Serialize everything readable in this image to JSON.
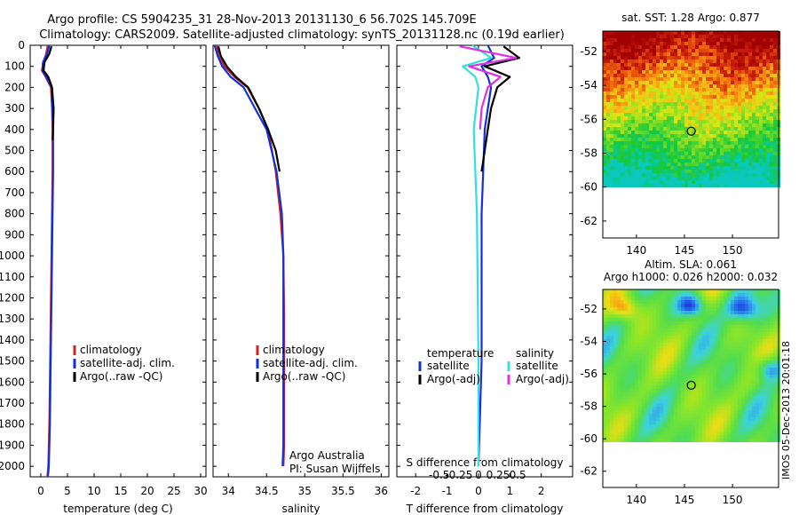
{
  "header": {
    "title_line1": "Argo profile: CS 5904235_31 28-Nov-2013 20131130_6 56.702S 145.709E",
    "title_line2": "Climatology: CARS2009. Satellite-adjusted climatology: synTS_20131128.nc (0.19d earlier)"
  },
  "side_stamp": "IMOS 05-Dec-2013 20:01:18",
  "colors": {
    "climatology": "#d42020",
    "satellite": "#1030e0",
    "argo": "#000000",
    "sat_salinity": "#30e0e0",
    "argo_salinity": "#e030e0"
  },
  "chart_data": [
    {
      "type": "line",
      "xlabel": "temperature (deg C)",
      "ylabel": "",
      "xlim": [
        -2,
        31
      ],
      "ylim": [
        2050,
        0
      ],
      "xticks": [
        0,
        5,
        10,
        15,
        20,
        25,
        30
      ],
      "xtick_labels": [
        "0",
        "5",
        "10",
        "15",
        "20",
        "25",
        "30"
      ],
      "yticks": [
        0,
        100,
        200,
        300,
        400,
        500,
        600,
        700,
        800,
        900,
        1000,
        1100,
        1200,
        1300,
        1400,
        1500,
        1600,
        1700,
        1800,
        1900,
        2000
      ],
      "ytick_labels": [
        "0",
        "100",
        "200",
        "300",
        "400",
        "500",
        "600",
        "700",
        "800",
        "900",
        "1000",
        "1100",
        "1200",
        "1300",
        "1400",
        "1500",
        "1600",
        "1700",
        "1800",
        "1900",
        "2000"
      ],
      "legend": {
        "position": "lower-middle",
        "entries": [
          "climatology",
          "satellite-adj. clim.",
          "Argo(..raw -QC)"
        ]
      },
      "series": [
        {
          "name": "climatology",
          "color": "#d42020",
          "x": [
            1.3,
            1.0,
            0.5,
            0.2,
            0.9,
            1.9,
            2.1,
            2.2,
            2.2,
            2.1,
            2.0,
            1.9,
            1.8,
            1.7,
            1.6,
            1.5,
            1.4,
            1.3,
            1.2
          ],
          "y": [
            0,
            40,
            80,
            120,
            150,
            200,
            300,
            400,
            600,
            800,
            1000,
            1200,
            1400,
            1600,
            1800,
            1900,
            2000,
            2030,
            2050
          ]
        },
        {
          "name": "satellite-adj. clim.",
          "color": "#1030e0",
          "x": [
            1.6,
            1.2,
            0.4,
            0.3,
            1.0,
            2.0,
            2.2,
            2.3,
            2.3,
            2.2,
            2.1,
            2.0,
            1.9,
            1.8,
            1.7,
            1.6,
            1.5,
            1.4,
            1.3
          ],
          "y": [
            0,
            40,
            80,
            120,
            150,
            200,
            300,
            400,
            600,
            800,
            1000,
            1200,
            1400,
            1600,
            1800,
            1900,
            2000,
            2030,
            2050
          ]
        },
        {
          "name": "Argo(..raw -QC)",
          "color": "#000000",
          "x": [
            2.0,
            1.6,
            0.7,
            0.5,
            1.4,
            2.1,
            2.4,
            2.3,
            2.2
          ],
          "y": [
            5,
            40,
            80,
            120,
            150,
            200,
            300,
            400,
            450
          ]
        }
      ]
    },
    {
      "type": "line",
      "xlabel": "salinity",
      "ylabel": "",
      "xlim": [
        33.8,
        36.1
      ],
      "ylim": [
        2050,
        0
      ],
      "xticks": [
        34,
        34.5,
        35,
        35.5,
        36
      ],
      "xtick_labels": [
        "34",
        "34.5",
        "35",
        "35.5",
        "36"
      ],
      "legend": {
        "position": "lower-middle",
        "entries": [
          "climatology",
          "satellite-adj. clim.",
          "Argo(..raw -QC)"
        ]
      },
      "annotations": [
        "Argo Australia",
        "PI: Susan Wijffels"
      ],
      "series": [
        {
          "name": "climatology",
          "color": "#d42020",
          "x": [
            33.85,
            33.87,
            33.95,
            34.08,
            34.25,
            34.4,
            34.52,
            34.62,
            34.68,
            34.72,
            34.73,
            34.73,
            34.73,
            34.72
          ],
          "y": [
            0,
            50,
            100,
            150,
            200,
            300,
            400,
            600,
            800,
            1000,
            1300,
            1600,
            1900,
            2000
          ]
        },
        {
          "name": "satellite-adj. clim.",
          "color": "#1030e0",
          "x": [
            33.82,
            33.86,
            33.92,
            34.03,
            34.2,
            34.35,
            34.5,
            34.63,
            34.7,
            34.72,
            34.72,
            34.72,
            34.72,
            34.71
          ],
          "y": [
            0,
            50,
            100,
            150,
            200,
            300,
            400,
            600,
            800,
            1000,
            1300,
            1600,
            1900,
            2000
          ]
        },
        {
          "name": "Argo(..raw -QC)",
          "color": "#000000",
          "x": [
            33.87,
            33.9,
            33.98,
            34.1,
            34.26,
            34.4,
            34.52,
            34.62,
            34.67
          ],
          "y": [
            5,
            50,
            100,
            150,
            200,
            300,
            400,
            500,
            600
          ]
        }
      ]
    },
    {
      "type": "line",
      "xlabel": "T difference from climatology",
      "xlabel_top": "S difference from climatology",
      "xlim": [
        -2.6,
        3.0
      ],
      "ylim": [
        2050,
        0
      ],
      "xticks": [
        -2,
        -1,
        0,
        1,
        2
      ],
      "xtick_labels": [
        "-2",
        "-1",
        "0",
        "1",
        "2"
      ],
      "sticks": [
        -0.5,
        -0.25,
        0,
        0.25,
        0.5
      ],
      "stick_labels": [
        "-0.5",
        "-0.25",
        "0",
        "0.25",
        "0.5"
      ],
      "legend": {
        "position": "lower",
        "headers": [
          "temperature",
          "salinity"
        ],
        "entries": [
          "satellite",
          "Argo(-adj)",
          "satellite",
          "Argo(-adj)"
        ]
      },
      "series": [
        {
          "name": "satellite",
          "color": "#1030e0",
          "x": [
            0.3,
            0.5,
            0.1,
            0.3,
            0.4,
            0.2,
            0.1,
            0.1,
            0.0
          ],
          "y": [
            0,
            60,
            100,
            150,
            200,
            400,
            800,
            1500,
            2000
          ]
        },
        {
          "name": "Argo(-adj)",
          "color": "#000000",
          "x": [
            0.8,
            1.3,
            0.2,
            1.0,
            0.6,
            0.4,
            0.3,
            0.2,
            0.1
          ],
          "y": [
            5,
            60,
            100,
            150,
            200,
            300,
            400,
            500,
            600
          ]
        },
        {
          "name": "satellite",
          "color": "#30e0e0",
          "x": [
            -0.2,
            0.4,
            -0.5,
            -0.1,
            0.0,
            -0.15,
            -0.05,
            0.0,
            0.0
          ],
          "y": [
            0,
            60,
            100,
            150,
            200,
            400,
            800,
            1500,
            2000
          ]
        },
        {
          "name": "Argo(-adj)",
          "color": "#e030e0",
          "x": [
            -0.6,
            1.2,
            -0.3,
            0.7,
            0.3,
            0.1,
            0.05
          ],
          "y": [
            5,
            60,
            100,
            150,
            200,
            300,
            400
          ]
        }
      ]
    }
  ],
  "maps": [
    {
      "title_lines": [
        "sat. SST: 1.28 Argo: 0.877"
      ],
      "yticks": [
        "-52",
        "-54",
        "-56",
        "-58",
        "-60",
        "-62"
      ],
      "xticks": [
        "140",
        "145",
        "150"
      ],
      "lon_range": [
        136.5,
        154.8
      ],
      "lat_range": [
        -63,
        -50.8
      ],
      "data_lat_min": -60,
      "marker": {
        "lon": 145.709,
        "lat": -56.702
      },
      "field": "sst"
    },
    {
      "title_lines": [
        "Altim. SLA: 0.061",
        "Argo h1000: 0.026 h2000: 0.032"
      ],
      "yticks": [
        "-52",
        "-54",
        "-56",
        "-58",
        "-60",
        "-62"
      ],
      "xticks": [
        "140",
        "145",
        "150"
      ],
      "lon_range": [
        136.5,
        154.8
      ],
      "lat_range": [
        -63,
        -50.8
      ],
      "data_lat_min": -60,
      "marker": {
        "lon": 145.709,
        "lat": -56.702
      },
      "field": "sla"
    }
  ]
}
